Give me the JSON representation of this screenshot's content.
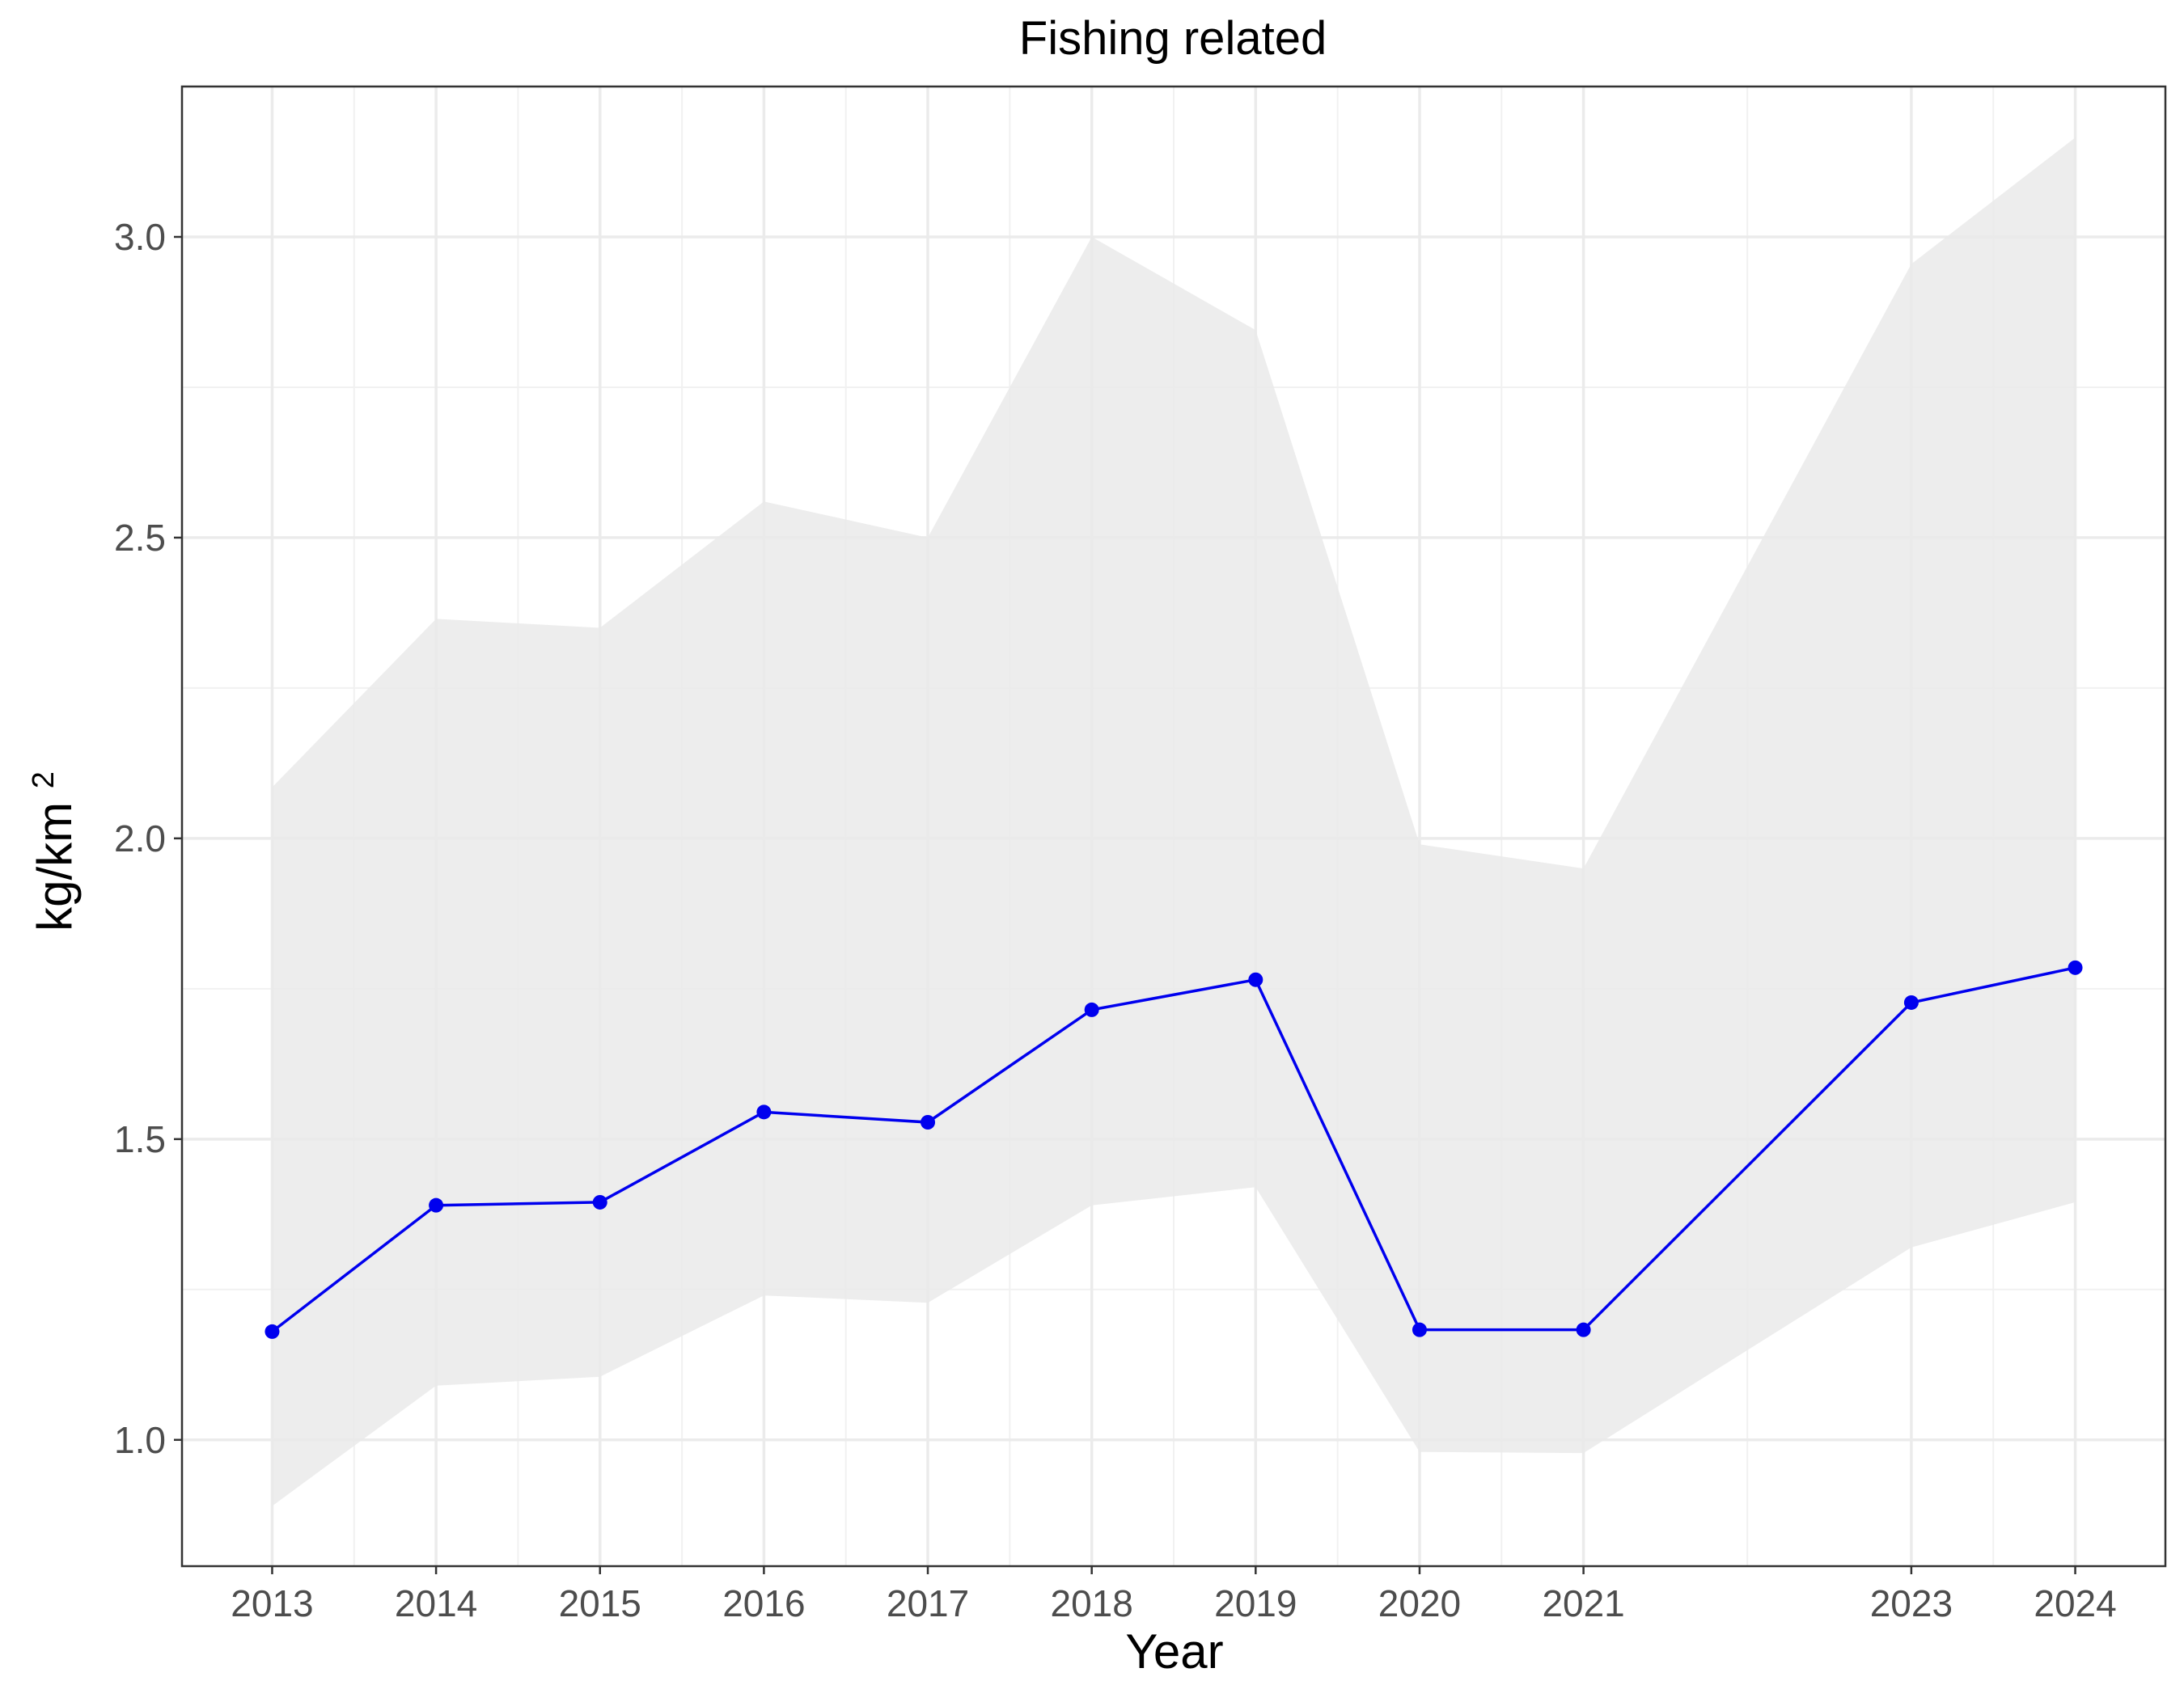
{
  "chart_data": {
    "type": "line",
    "title": "Fishing related",
    "xlabel": "Year",
    "ylabel_base": "kg/km",
    "ylabel_superscript": "2",
    "x": [
      2013,
      2014,
      2015,
      2016,
      2017,
      2018,
      2019,
      2020,
      2021,
      2023,
      2024
    ],
    "x_ticks": [
      2013,
      2014,
      2015,
      2016,
      2017,
      2018,
      2019,
      2020,
      2021,
      2023,
      2024
    ],
    "y_ticks": [
      "1.0",
      "1.5",
      "2.0",
      "2.5",
      "3.0"
    ],
    "xlim": [
      2012.45,
      2024.55
    ],
    "ylim": [
      0.79,
      3.25
    ],
    "grid": true,
    "series": [
      {
        "values": [
          1.18,
          1.39,
          1.395,
          1.545,
          1.528,
          1.715,
          1.765,
          1.183,
          1.183,
          1.727,
          1.785
        ],
        "lower": [
          0.89,
          1.09,
          1.105,
          1.24,
          1.228,
          1.39,
          1.42,
          0.98,
          0.978,
          1.32,
          1.395
        ],
        "upper": [
          2.085,
          2.365,
          2.35,
          2.56,
          2.5,
          3.0,
          2.845,
          1.99,
          1.95,
          2.955,
          3.165
        ],
        "color": "#0000ee",
        "band_color": "#e9e9e9"
      }
    ]
  }
}
